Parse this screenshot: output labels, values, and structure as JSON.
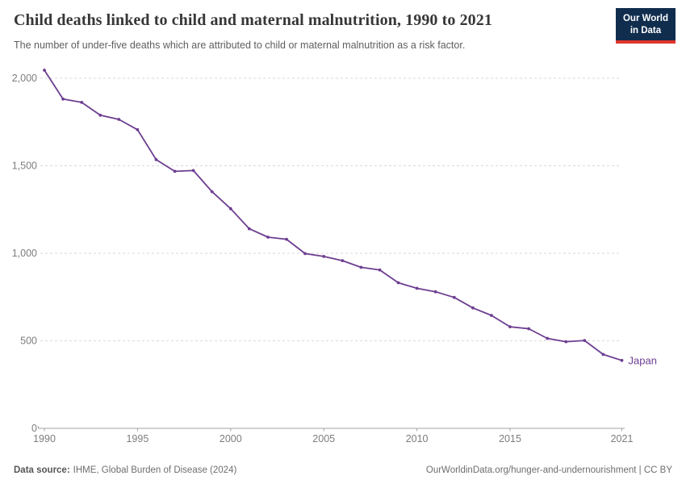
{
  "header": {
    "title": "Child deaths linked to child and maternal malnutrition, 1990 to 2021",
    "subtitle": "The number of under-five deaths which are attributed to child or maternal malnutrition as a risk factor.",
    "logo": {
      "line1": "Our World",
      "line2": "in Data",
      "bg_color": "#102d4e",
      "accent_color": "#e0362c"
    }
  },
  "chart_data": {
    "type": "line",
    "title": "Child deaths linked to child and maternal malnutrition, 1990 to 2021",
    "subtitle": "The number of under-five deaths which are attributed to child or maternal malnutrition as a risk factor.",
    "x": [
      1990,
      1991,
      1992,
      1993,
      1994,
      1995,
      1996,
      1997,
      1998,
      1999,
      2000,
      2001,
      2002,
      2003,
      2004,
      2005,
      2006,
      2007,
      2008,
      2009,
      2010,
      2011,
      2012,
      2013,
      2014,
      2015,
      2016,
      2017,
      2018,
      2019,
      2020,
      2021
    ],
    "series": [
      {
        "name": "Japan",
        "color": "#6d3e91",
        "values": [
          2046,
          1881,
          1862,
          1789,
          1765,
          1706,
          1535,
          1468,
          1473,
          1352,
          1255,
          1140,
          1092,
          1080,
          998,
          982,
          958,
          920,
          905,
          832,
          800,
          780,
          748,
          688,
          645,
          580,
          569,
          514,
          495,
          502,
          422,
          388
        ]
      }
    ],
    "xlabel": "",
    "ylabel": "",
    "ylim": [
      0,
      2050
    ],
    "yticks": [
      0,
      500,
      1000,
      1500,
      2000
    ],
    "ytick_labels": [
      "0",
      "500",
      "1,000",
      "1,500",
      "2,000"
    ],
    "xticks": [
      1990,
      1995,
      2000,
      2005,
      2010,
      2015,
      2021
    ],
    "grid": "horizontal-dashed",
    "legend_position": "end-of-line-label",
    "end_label": "Japan",
    "colors": {
      "line": "#6d3e91",
      "grid": "#dadada",
      "axis": "#a3a3a3",
      "tick_text": "#7d7d7d"
    }
  },
  "footer": {
    "source_label": "Data source:",
    "source_value": "IHME, Global Burden of Disease (2024)",
    "attribution": "OurWorldinData.org/hunger-and-undernourishment | CC BY"
  }
}
